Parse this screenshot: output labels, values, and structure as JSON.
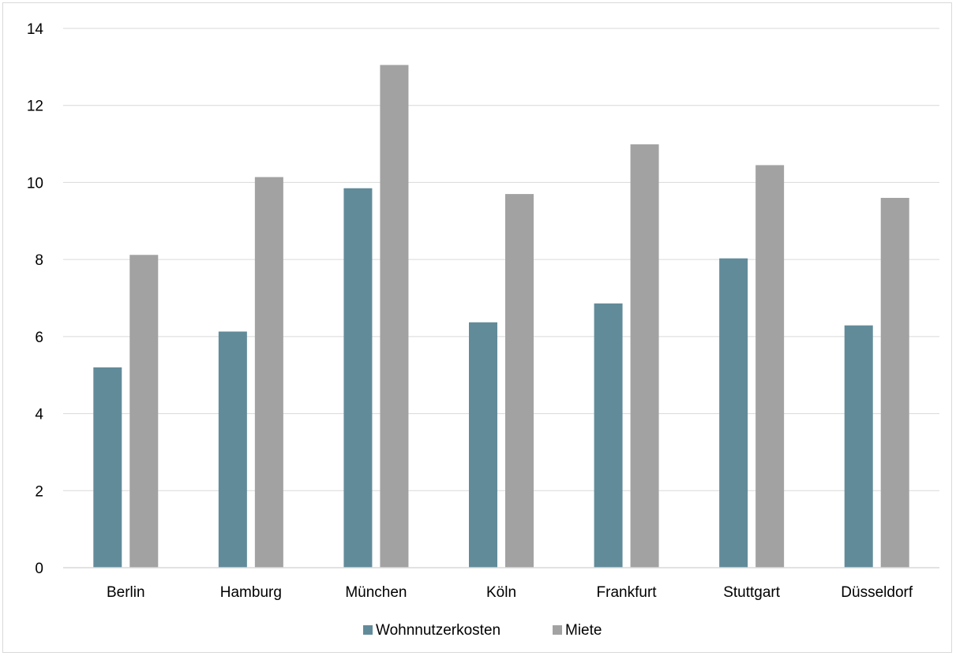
{
  "chart_data": {
    "type": "bar",
    "categories": [
      "Berlin",
      "Hamburg",
      "München",
      "Köln",
      "Frankfurt",
      "Stuttgart",
      "Düsseldorf"
    ],
    "series": [
      {
        "name": "Wohnnutzerkosten",
        "color": "#628b9a",
        "values": [
          5.2,
          6.13,
          9.85,
          6.37,
          6.86,
          8.03,
          6.29
        ]
      },
      {
        "name": "Miete",
        "color": "#a2a2a2",
        "values": [
          8.12,
          10.14,
          13.05,
          9.7,
          10.99,
          10.45,
          9.6
        ]
      }
    ],
    "ylim": [
      0,
      14
    ],
    "yticks": [
      "0",
      "2",
      "4",
      "6",
      "8",
      "10",
      "12",
      "14"
    ],
    "ytick_values": [
      0,
      2,
      4,
      6,
      8,
      10,
      12,
      14
    ],
    "grid": true,
    "legend_position": "bottom"
  }
}
